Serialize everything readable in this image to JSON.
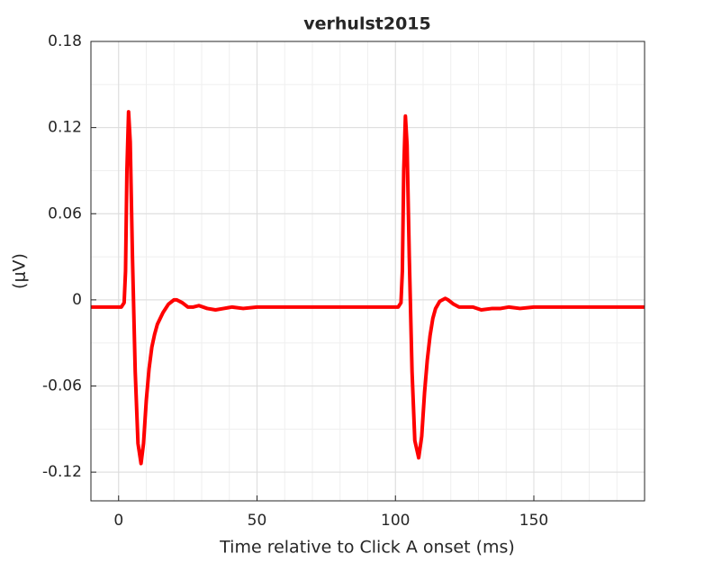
{
  "chart_data": {
    "type": "line",
    "title": "verhulst2015",
    "xlabel": "Time relative to Click A onset (ms)",
    "ylabel": "(μV)",
    "x": [
      -10,
      1,
      2,
      2.5,
      3,
      3.6,
      4.2,
      5,
      6,
      7,
      8.1,
      9,
      10,
      11,
      12,
      13,
      14,
      16,
      18,
      20,
      21,
      23,
      25,
      27,
      29,
      32,
      35,
      38,
      41,
      45,
      50,
      60,
      70,
      80,
      90,
      101,
      102,
      102.5,
      103,
      103.6,
      104.2,
      105,
      106,
      107,
      108.4,
      109.5,
      110.5,
      111.5,
      112.5,
      113.5,
      114.5,
      116,
      118,
      119,
      121,
      123,
      125,
      128,
      131,
      135,
      138,
      141,
      145,
      150,
      160,
      170,
      180,
      190
    ],
    "series": [
      {
        "name": "verhulst2015",
        "color": "#ff0000",
        "values": [
          -0.005,
          -0.005,
          -0.002,
          0.02,
          0.09,
          0.131,
          0.11,
          0.03,
          -0.05,
          -0.1,
          -0.114,
          -0.1,
          -0.07,
          -0.048,
          -0.033,
          -0.024,
          -0.017,
          -0.009,
          -0.003,
          0.0,
          0.0,
          -0.002,
          -0.005,
          -0.005,
          -0.004,
          -0.006,
          -0.007,
          -0.006,
          -0.005,
          -0.006,
          -0.005,
          -0.005,
          -0.005,
          -0.005,
          -0.005,
          -0.005,
          -0.002,
          0.02,
          0.09,
          0.128,
          0.108,
          0.03,
          -0.05,
          -0.098,
          -0.11,
          -0.095,
          -0.065,
          -0.042,
          -0.025,
          -0.013,
          -0.006,
          -0.001,
          0.001,
          0.0,
          -0.003,
          -0.005,
          -0.005,
          -0.005,
          -0.007,
          -0.006,
          -0.006,
          -0.005,
          -0.006,
          -0.005,
          -0.005,
          -0.005,
          -0.005,
          -0.005
        ]
      }
    ],
    "xlim": [
      -10,
      190
    ],
    "xticks": [
      0,
      50,
      100,
      150
    ],
    "ylim": [
      -0.14,
      0.18
    ],
    "yticks": [
      -0.12,
      -0.06,
      0,
      0.06,
      0.12,
      0.18
    ],
    "grid": true,
    "minor_grid": true
  }
}
